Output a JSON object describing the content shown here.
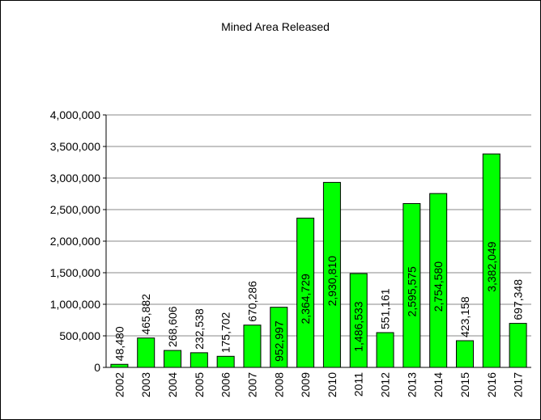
{
  "chart_data": {
    "type": "bar",
    "title": "Mined Area Released",
    "categories": [
      "2002",
      "2003",
      "2004",
      "2005",
      "2006",
      "2007",
      "2008",
      "2009",
      "2010",
      "2011",
      "2012",
      "2013",
      "2014",
      "2015",
      "2016",
      "2017"
    ],
    "values": [
      48480,
      465882,
      268606,
      232538,
      175702,
      670286,
      952997,
      2364729,
      2930810,
      1486533,
      551161,
      2595575,
      2754580,
      423158,
      3382049,
      697348
    ],
    "value_labels": [
      "48,480",
      "465,882",
      "268,606",
      "232,538",
      "175,702",
      "670,286",
      "952,997",
      "2,364,729",
      "2,930,810",
      "1,486,533",
      "551,161",
      "2,595,575",
      "2,754,580",
      "423,158",
      "3,382,049",
      "697,348"
    ],
    "color": "#00ff00",
    "ylim": [
      0,
      4000000
    ],
    "yticks": [
      0,
      {
        "value": 500000,
        "label": "500,000"
      },
      {
        "value": 1000000,
        "label": "1,000,000"
      },
      {
        "value": 1500000,
        "label": "1,500,000"
      },
      {
        "value": 2000000,
        "label": "2,000,000"
      },
      {
        "value": 2500000,
        "label": "2,500,000"
      },
      {
        "value": 3000000,
        "label": "3,000,000"
      },
      {
        "value": 3500000,
        "label": "3,500,000"
      },
      {
        "value": 4000000,
        "label": "4,000,000"
      }
    ],
    "grid": true
  }
}
